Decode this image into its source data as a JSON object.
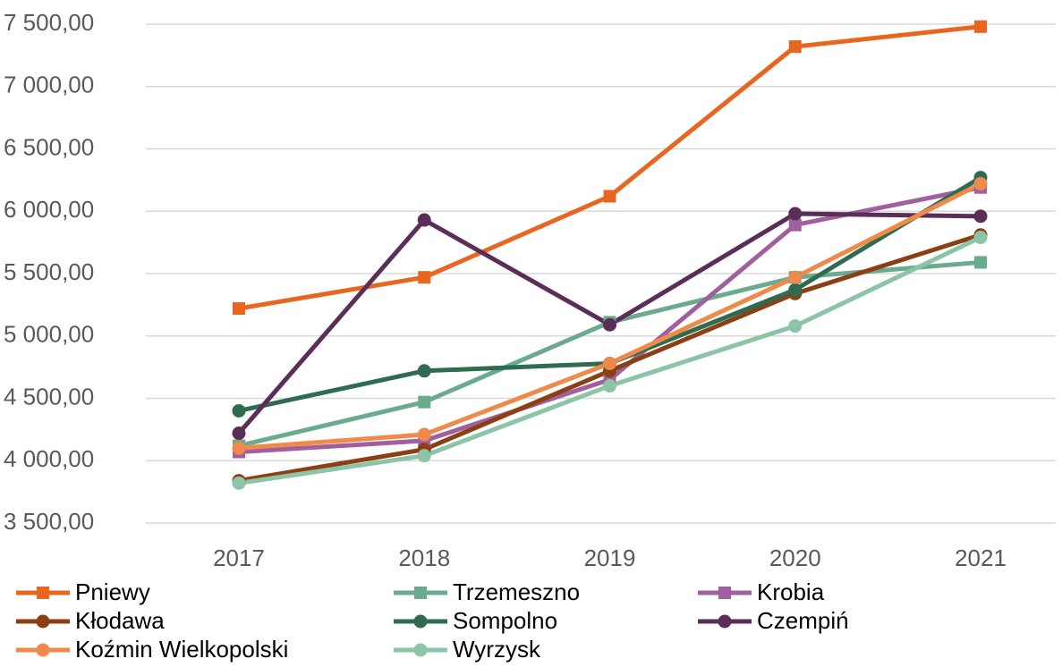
{
  "chart_data": {
    "type": "line",
    "categories": [
      "2017",
      "2018",
      "2019",
      "2020",
      "2021"
    ],
    "ylim": [
      3500,
      7500
    ],
    "yticks": [
      {
        "value": 3500,
        "label": "3 500,00"
      },
      {
        "value": 4000,
        "label": "4 000,00"
      },
      {
        "value": 4500,
        "label": "4 500,00"
      },
      {
        "value": 5000,
        "label": "5 000,00"
      },
      {
        "value": 5500,
        "label": "5 500,00"
      },
      {
        "value": 6000,
        "label": "6 000,00"
      },
      {
        "value": 6500,
        "label": "6 500,00"
      },
      {
        "value": 7000,
        "label": "7 000,00"
      },
      {
        "value": 7500,
        "label": "7 500,00"
      }
    ],
    "grid": true,
    "legend": "bottom",
    "series": [
      {
        "name": "Pniewy",
        "color": "#e8661f",
        "marker": "square",
        "values": [
          5220,
          5470,
          6120,
          7320,
          7480
        ]
      },
      {
        "name": "Trzemeszno",
        "color": "#6aab8e",
        "marker": "square",
        "values": [
          4120,
          4470,
          5110,
          5470,
          5590
        ]
      },
      {
        "name": "Krobia",
        "color": "#a0609f",
        "marker": "square",
        "values": [
          4070,
          4160,
          4650,
          5890,
          6190
        ]
      },
      {
        "name": "Kłodawa",
        "color": "#8b3f12",
        "marker": "circle",
        "values": [
          3840,
          4090,
          4720,
          5340,
          5810
        ]
      },
      {
        "name": "Sompolno",
        "color": "#2f6b50",
        "marker": "circle",
        "values": [
          4400,
          4720,
          4780,
          5370,
          6270
        ]
      },
      {
        "name": "Czempiń",
        "color": "#5a2e57",
        "marker": "circle",
        "values": [
          4220,
          5930,
          5090,
          5980,
          5960
        ]
      },
      {
        "name": "Koźmin Wielkopolski",
        "color": "#ef8a4a",
        "marker": "circle",
        "values": [
          4100,
          4210,
          4780,
          5470,
          6220
        ]
      },
      {
        "name": "Wyrzysk",
        "color": "#8cc4a8",
        "marker": "circle",
        "values": [
          3820,
          4040,
          4600,
          5080,
          5790
        ]
      }
    ]
  }
}
